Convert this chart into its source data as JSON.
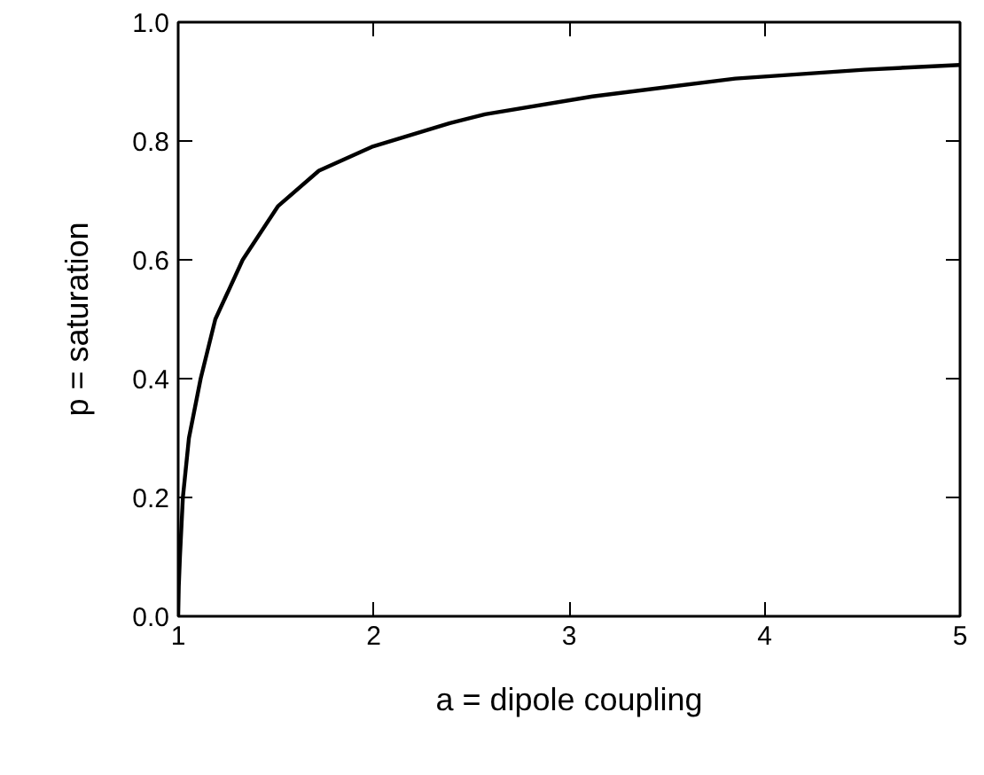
{
  "chart_data": {
    "type": "line",
    "xlabel": "a = dipole coupling",
    "ylabel": "p = saturation",
    "x": [
      1.0,
      1.003,
      1.009,
      1.024,
      1.055,
      1.115,
      1.19,
      1.33,
      1.51,
      1.72,
      1.99,
      2.39,
      2.57,
      3.12,
      3.85,
      4.51,
      5.0
    ],
    "series": [
      {
        "color": "#000000",
        "values": [
          0.0,
          0.05,
          0.1,
          0.2,
          0.3,
          0.4,
          0.5,
          0.6,
          0.69,
          0.75,
          0.79,
          0.83,
          0.845,
          0.875,
          0.905,
          0.92,
          0.928
        ]
      }
    ],
    "xlim": [
      1,
      5
    ],
    "ylim": [
      0,
      1
    ],
    "xticks": [
      1,
      2,
      3,
      4,
      5
    ],
    "yticks": [
      {
        "value": 0,
        "label": "0.0"
      },
      0.2,
      0.4,
      0.6,
      0.8,
      {
        "value": 1,
        "label": "1.0"
      }
    ],
    "grid": false,
    "marker": "none",
    "line_style": "solid"
  }
}
